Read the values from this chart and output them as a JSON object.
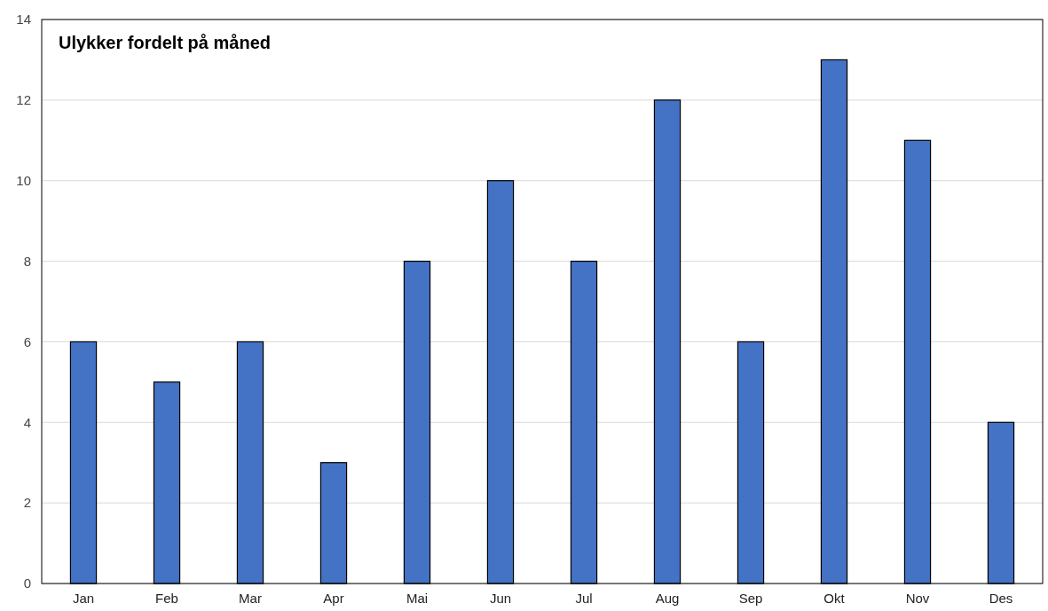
{
  "chart_data": {
    "type": "bar",
    "title": "Ulykker fordelt på måned",
    "categories": [
      "Jan",
      "Feb",
      "Mar",
      "Apr",
      "Mai",
      "Jun",
      "Jul",
      "Aug",
      "Sep",
      "Okt",
      "Nov",
      "Des"
    ],
    "values": [
      6,
      5,
      6,
      3,
      8,
      10,
      8,
      12,
      6,
      13,
      11,
      4
    ],
    "color": "#4472c4",
    "ylim": [
      0,
      14
    ],
    "yticks": [
      0,
      2,
      4,
      6,
      8,
      10,
      12,
      14
    ],
    "grid": "y"
  }
}
